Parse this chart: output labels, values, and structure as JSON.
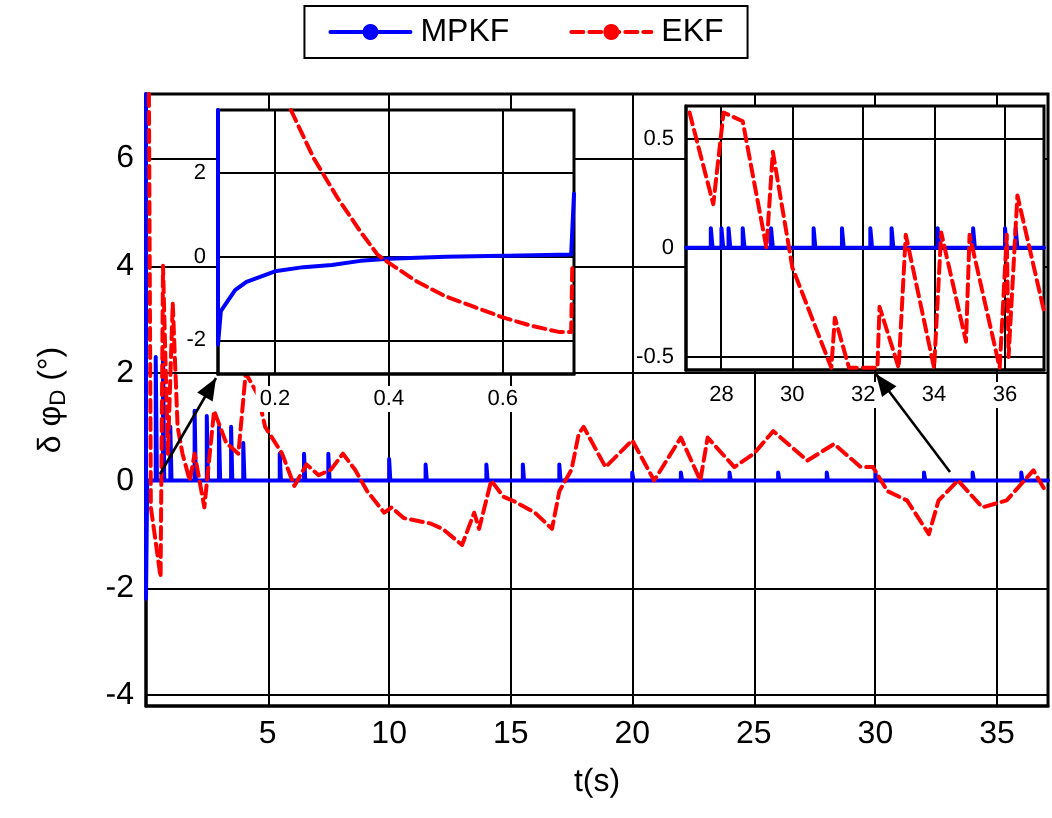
{
  "chart_data": [
    {
      "type": "line",
      "xlabel": "t(s)",
      "ylabel": "δ φ$_{D}$ (°)",
      "xlim": [
        0,
        37.1
      ],
      "ylim": [
        -4.2,
        7.2
      ],
      "xticks": [
        5,
        10,
        15,
        20,
        25,
        30,
        35
      ],
      "yticks": [
        -4,
        -2,
        0,
        2,
        4,
        6
      ],
      "grid": true,
      "legend": "top",
      "marker": "none",
      "series": [
        {
          "name": "MPKF",
          "color": "#0000ff",
          "line_style": "solid",
          "x": [
            0,
            0,
            0.05,
            0.4,
            0.4,
            0.45,
            0.7,
            0.7,
            0.75,
            1.0,
            1.0,
            1.05,
            2.0,
            2.0,
            2.05,
            2.5,
            2.5,
            2.55,
            3.0,
            3.0,
            3.05,
            3.5,
            3.5,
            3.55,
            4.0,
            4.0,
            4.05,
            5.5,
            5.5,
            5.55,
            6.5,
            6.5,
            6.55,
            7.5,
            7.5,
            7.55,
            10,
            10,
            10.05,
            11.5,
            11.5,
            11.55,
            14,
            14,
            14.05,
            15.5,
            15.5,
            15.55,
            17,
            17,
            17.05,
            20,
            20,
            20.05,
            22,
            22,
            22.05,
            24,
            24,
            24.05,
            26,
            26,
            26.05,
            28,
            28,
            28.05,
            30,
            30,
            30.05,
            32,
            32,
            32.05,
            34,
            34,
            34.05,
            36,
            36,
            36.05,
            37.1
          ],
          "values": [
            7.2,
            -2.2,
            0,
            0,
            2.3,
            0,
            0,
            2.3,
            0,
            0,
            1.0,
            0,
            0,
            1.3,
            0,
            0,
            1.2,
            0,
            0,
            1.0,
            0,
            0,
            1.0,
            0,
            0,
            0.7,
            0,
            0,
            0.5,
            0,
            0,
            0.5,
            0,
            0,
            0.5,
            0,
            0,
            0.4,
            0,
            0,
            0.3,
            0,
            0,
            0.3,
            0,
            0,
            0.3,
            0,
            0,
            0.3,
            0,
            0,
            0.15,
            0,
            0,
            0.15,
            0,
            0,
            0.15,
            0,
            0,
            0.15,
            0,
            0,
            0.15,
            0,
            0,
            0.15,
            0,
            0,
            0.15,
            0,
            0,
            0.15,
            0,
            0,
            0.15,
            0,
            0
          ]
        },
        {
          "name": "EKF",
          "color": "#ff0000",
          "line_style": "dashed",
          "x": [
            0.12,
            0.2,
            0.6,
            0.7,
            0.9,
            1.1,
            1.3,
            1.5,
            1.8,
            2.0,
            2.4,
            2.8,
            3.3,
            3.8,
            4.1,
            4.6,
            4.9,
            5.6,
            6.1,
            6.6,
            7.1,
            7.6,
            8.1,
            8.6,
            9.1,
            9.8,
            10.1,
            10.6,
            11.7,
            12.2,
            13.0,
            13.5,
            13.7,
            14.2,
            14.7,
            15.2,
            16.0,
            16.7,
            17.0,
            17.5,
            17.8,
            18.0,
            18.9,
            20.0,
            20.9,
            22.0,
            22.8,
            23.1,
            24.2,
            25.0,
            25.8,
            27.2,
            28.3,
            29.4,
            29.9,
            30.5,
            31.3,
            32.2,
            32.6,
            33.4,
            34.4,
            35.4,
            36.5,
            37.0
          ],
          "values": [
            7.2,
            -0.5,
            -1.8,
            4,
            0.5,
            3.3,
            1,
            0.5,
            0,
            0.5,
            -0.5,
            1.3,
            0.7,
            0.5,
            2.0,
            1.6,
            1.0,
            0.5,
            -0.1,
            0.3,
            0.1,
            0.2,
            0.5,
            0.2,
            -0.2,
            -0.6,
            -0.5,
            -0.7,
            -0.8,
            -0.9,
            -1.2,
            -0.6,
            -0.9,
            0,
            -0.3,
            -0.4,
            -0.6,
            -0.9,
            -0.2,
            0.2,
            0.87,
            1.0,
            0.25,
            0.75,
            0,
            0.8,
            0,
            0.8,
            0.25,
            0.5,
            0.92,
            0.37,
            0.68,
            0.25,
            0.25,
            -0.2,
            -0.37,
            -1.0,
            -0.37,
            0,
            -0.5,
            -0.37,
            0.19,
            -0.2
          ]
        }
      ]
    },
    {
      "type": "line",
      "xlim": [
        0.1,
        0.725
      ],
      "ylim": [
        -2.8,
        3.5
      ],
      "xticks": [
        0.2,
        0.4,
        0.6
      ],
      "yticks": [
        -2,
        0,
        2
      ],
      "grid": true,
      "marker": "none",
      "series": [
        {
          "color": "#0000ff",
          "line_style": "solid",
          "x": [
            0.1,
            0.1,
            0.105,
            0.11,
            0.13,
            0.15,
            0.2,
            0.25,
            0.3,
            0.35,
            0.4,
            0.5,
            0.6,
            0.72,
            0.725
          ],
          "values": [
            3.5,
            -2.1,
            -1.3,
            -1.2,
            -0.8,
            -0.6,
            -0.35,
            -0.25,
            -0.2,
            -0.1,
            -0.05,
            0,
            0.02,
            0.05,
            1.5
          ]
        },
        {
          "color": "#ff0000",
          "line_style": "dashed",
          "x": [
            0.228,
            0.268,
            0.31,
            0.35,
            0.38,
            0.4,
            0.45,
            0.5,
            0.55,
            0.6,
            0.65,
            0.7,
            0.72,
            0.722
          ],
          "values": [
            3.5,
            2.35,
            1.4,
            0.6,
            0.05,
            -0.15,
            -0.6,
            -0.95,
            -1.2,
            -1.45,
            -1.65,
            -1.8,
            -1.8,
            -0.2
          ]
        }
      ]
    },
    {
      "type": "line",
      "xlim": [
        27,
        37.1
      ],
      "ylim": [
        -0.56,
        0.65
      ],
      "xticks": [
        28,
        30,
        32,
        34,
        36
      ],
      "yticks": [
        -0.5,
        0,
        0.5
      ],
      "grid": true,
      "marker": "none",
      "series": [
        {
          "color": "#0000ff",
          "line_style": "solid",
          "x": [
            27,
            27.7,
            27.7,
            27.75,
            28,
            28,
            28.05,
            28.2,
            28.2,
            28.25,
            28.6,
            28.6,
            28.65,
            29.4,
            29.4,
            29.45,
            30.6,
            30.6,
            30.65,
            31.4,
            31.4,
            31.45,
            32.2,
            32.2,
            32.25,
            32.8,
            32.8,
            32.85,
            34.1,
            34.1,
            34.15,
            35.1,
            35.1,
            35.15,
            36,
            36,
            36.05,
            36.3,
            36.3,
            36.35,
            37.1
          ],
          "values": [
            0,
            0,
            0.09,
            0,
            0,
            0.09,
            0,
            0,
            0.09,
            0,
            0,
            0.09,
            0,
            0,
            0.09,
            0,
            0,
            0.09,
            0,
            0,
            0.09,
            0,
            0,
            0.09,
            0,
            0,
            0.09,
            0,
            0,
            0.09,
            0,
            0,
            0.09,
            0,
            0,
            0.09,
            0,
            0,
            0.09,
            0,
            0
          ]
        },
        {
          "color": "#ff0000",
          "line_style": "dashed",
          "x": [
            27.1,
            27.77,
            28.06,
            28.6,
            29.27,
            29.45,
            30.0,
            31.1,
            31.2,
            31.6,
            32.4,
            32.46,
            33.0,
            33.2,
            34.0,
            34.2,
            34.9,
            35.0,
            35.85,
            36.05,
            36.1,
            36.35,
            37.1
          ],
          "values": [
            0.62,
            0.2,
            0.62,
            0.58,
            0,
            0.44,
            -0.09,
            -0.55,
            -0.32,
            -0.55,
            -0.55,
            -0.27,
            -0.55,
            0.06,
            -0.55,
            0.07,
            -0.43,
            0.06,
            -0.55,
            0.06,
            -0.5,
            0.24,
            -0.29
          ]
        }
      ]
    }
  ]
}
